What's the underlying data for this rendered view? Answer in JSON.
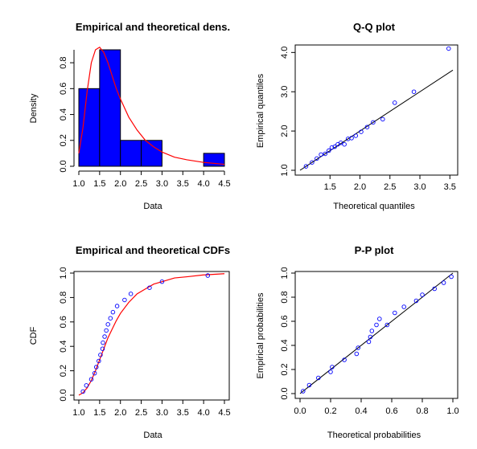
{
  "chart_data": [
    {
      "type": "bar",
      "title": "Empirical and theoretical dens.",
      "xlabel": "Data",
      "ylabel": "Density",
      "xlim": [
        1.0,
        4.5
      ],
      "ylim": [
        0,
        0.9
      ],
      "xticks": [
        "1.0",
        "1.5",
        "2.0",
        "2.5",
        "3.0",
        "3.5",
        "4.0",
        "4.5"
      ],
      "yticks": [
        "0.0",
        "0.2",
        "0.4",
        "0.6",
        "0.8"
      ],
      "bins": [
        {
          "x0": 1.0,
          "x1": 1.5,
          "density": 0.6
        },
        {
          "x0": 1.5,
          "x1": 2.0,
          "density": 0.9
        },
        {
          "x0": 2.0,
          "x1": 2.5,
          "density": 0.2
        },
        {
          "x0": 2.5,
          "x1": 3.0,
          "density": 0.2
        },
        {
          "x0": 3.0,
          "x1": 3.5,
          "density": 0.0
        },
        {
          "x0": 3.5,
          "x1": 4.0,
          "density": 0.0
        },
        {
          "x0": 4.0,
          "x1": 4.5,
          "density": 0.1
        }
      ],
      "bar_color": "#0000ff",
      "curve_color": "#ff0000",
      "curve": {
        "x": [
          1.0,
          1.1,
          1.2,
          1.3,
          1.4,
          1.5,
          1.6,
          1.7,
          1.8,
          1.9,
          2.0,
          2.2,
          2.4,
          2.6,
          2.8,
          3.0,
          3.3,
          3.6,
          4.0,
          4.5
        ],
        "y": [
          0.1,
          0.3,
          0.58,
          0.8,
          0.9,
          0.92,
          0.88,
          0.8,
          0.7,
          0.6,
          0.52,
          0.38,
          0.28,
          0.2,
          0.15,
          0.11,
          0.07,
          0.05,
          0.03,
          0.015
        ]
      }
    },
    {
      "type": "scatter",
      "title": "Q-Q plot",
      "xlabel": "Theoretical quantiles",
      "ylabel": "Empirical quantiles",
      "xlim": [
        1.0,
        3.55
      ],
      "ylim": [
        1.0,
        4.15
      ],
      "xticks": [
        "1.5",
        "2.0",
        "2.5",
        "3.0",
        "3.5"
      ],
      "yticks": [
        "1.0",
        "2.0",
        "3.0",
        "4.0"
      ],
      "ytick_values": [
        1.0,
        2.0,
        3.0,
        4.0
      ],
      "xtick_values": [
        1.5,
        2.0,
        2.5,
        3.0,
        3.5
      ],
      "points": {
        "x": [
          1.1,
          1.2,
          1.28,
          1.35,
          1.42,
          1.48,
          1.53,
          1.58,
          1.63,
          1.68,
          1.74,
          1.8,
          1.86,
          1.93,
          2.02,
          2.12,
          2.22,
          2.38,
          2.58,
          2.9,
          3.48
        ],
        "y": [
          1.1,
          1.2,
          1.3,
          1.4,
          1.42,
          1.5,
          1.58,
          1.6,
          1.66,
          1.7,
          1.66,
          1.8,
          1.82,
          1.88,
          1.98,
          2.1,
          2.22,
          2.3,
          2.72,
          3.0,
          4.1
        ]
      },
      "line": {
        "x": [
          1.0,
          3.55
        ],
        "y": [
          1.0,
          3.55
        ]
      },
      "point_color": "#0000ff",
      "line_color": "#000000"
    },
    {
      "type": "scatter",
      "title": "Empirical and theoretical CDFs",
      "xlabel": "Data",
      "ylabel": "CDF",
      "xlim": [
        1.0,
        4.5
      ],
      "ylim": [
        0,
        1.0
      ],
      "xticks": [
        "1.0",
        "1.5",
        "2.0",
        "2.5",
        "3.0",
        "3.5",
        "4.0",
        "4.5"
      ],
      "yticks": [
        "0.0",
        "0.2",
        "0.4",
        "0.6",
        "0.8",
        "1.0"
      ],
      "points": {
        "x": [
          1.1,
          1.18,
          1.3,
          1.38,
          1.42,
          1.48,
          1.52,
          1.57,
          1.58,
          1.62,
          1.66,
          1.7,
          1.76,
          1.82,
          1.92,
          2.1,
          2.25,
          2.7,
          3.0,
          4.1
        ],
        "y": [
          0.03,
          0.08,
          0.13,
          0.18,
          0.23,
          0.28,
          0.33,
          0.38,
          0.43,
          0.48,
          0.53,
          0.58,
          0.63,
          0.68,
          0.73,
          0.78,
          0.83,
          0.88,
          0.93,
          0.98
        ]
      },
      "curve": {
        "x": [
          1.0,
          1.1,
          1.2,
          1.3,
          1.4,
          1.5,
          1.6,
          1.7,
          1.8,
          1.9,
          2.0,
          2.2,
          2.4,
          2.6,
          2.8,
          3.0,
          3.3,
          3.6,
          4.0,
          4.5
        ],
        "y": [
          0.0,
          0.02,
          0.06,
          0.12,
          0.2,
          0.29,
          0.38,
          0.47,
          0.54,
          0.61,
          0.67,
          0.76,
          0.83,
          0.87,
          0.91,
          0.93,
          0.96,
          0.97,
          0.985,
          0.995
        ]
      },
      "point_color": "#0000ff",
      "curve_color": "#ff0000"
    },
    {
      "type": "scatter",
      "title": "P-P plot",
      "xlabel": "Theoretical probabilities",
      "ylabel": "Empirical probabilities",
      "xlim": [
        0,
        1.0
      ],
      "ylim": [
        0,
        1.0
      ],
      "xticks": [
        "0.0",
        "0.2",
        "0.4",
        "0.6",
        "0.8",
        "1.0"
      ],
      "yticks": [
        "0.0",
        "0.2",
        "0.4",
        "0.6",
        "0.8",
        "1.0"
      ],
      "points": {
        "x": [
          0.02,
          0.06,
          0.12,
          0.2,
          0.21,
          0.29,
          0.37,
          0.38,
          0.45,
          0.46,
          0.47,
          0.5,
          0.52,
          0.57,
          0.62,
          0.68,
          0.76,
          0.8,
          0.88,
          0.94,
          0.99
        ],
        "y": [
          0.02,
          0.07,
          0.13,
          0.18,
          0.22,
          0.28,
          0.33,
          0.38,
          0.43,
          0.47,
          0.52,
          0.57,
          0.62,
          0.57,
          0.67,
          0.72,
          0.77,
          0.82,
          0.87,
          0.92,
          0.97
        ]
      },
      "line": {
        "x": [
          0,
          1.0
        ],
        "y": [
          0,
          1.0
        ]
      },
      "point_color": "#0000ff",
      "line_color": "#000000"
    }
  ]
}
